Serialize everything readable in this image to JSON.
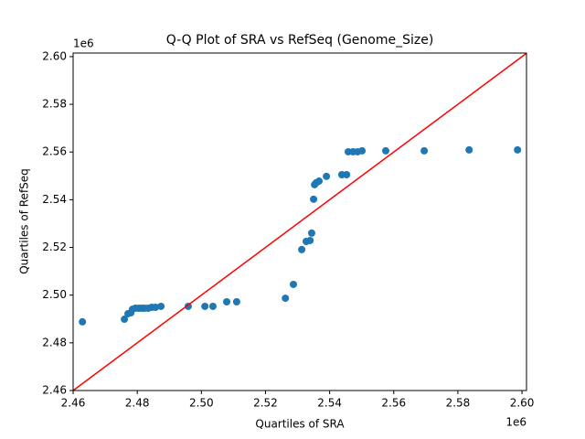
{
  "chart_data": {
    "type": "scatter",
    "title": "Q-Q Plot of SRA vs RefSeq (Genome_Size)",
    "x_label": "Quartiles of SRA",
    "y_label": "Quartiles of RefSeq",
    "x_offset_label": "1e6",
    "y_offset_label": "1e6",
    "color": "#1f77b4",
    "reference_line_color": "#ff0000",
    "xlim": [
      2.46,
      2.6014
    ],
    "ylim": [
      2.46,
      2.6015
    ],
    "xticks": [
      2.46,
      2.48,
      {
        "value": 2.5,
        "label": "2.50"
      },
      2.52,
      2.54,
      2.56,
      2.58,
      {
        "value": 2.6,
        "label": "2.60"
      }
    ],
    "yticks": [
      2.46,
      2.48,
      {
        "value": 2.5,
        "label": "2.50"
      },
      2.52,
      2.54,
      2.56,
      2.58,
      {
        "value": 2.6,
        "label": "2.60"
      }
    ],
    "x": [
      2.4629,
      2.476,
      2.4771,
      2.478,
      2.4785,
      2.4794,
      2.4805,
      2.4814,
      2.4822,
      2.4834,
      2.4845,
      2.4857,
      2.4874,
      2.4959,
      2.5011,
      2.5036,
      2.5079,
      2.511,
      2.5262,
      2.5287,
      2.5313,
      2.5327,
      2.5339,
      2.5344,
      2.535,
      2.5353,
      2.5358,
      2.5367,
      2.539,
      2.5438,
      2.5453,
      2.5458,
      2.5473,
      2.5487,
      2.5501,
      2.5575,
      2.5695,
      2.5835,
      2.5986
    ],
    "values": [
      2.4888,
      2.4899,
      2.4922,
      2.4926,
      2.4941,
      2.4945,
      2.4945,
      2.4945,
      2.4945,
      2.4945,
      2.4949,
      2.4949,
      2.4953,
      2.4953,
      2.4953,
      2.4953,
      2.4972,
      2.4972,
      2.4987,
      2.5045,
      2.5191,
      2.5225,
      2.5229,
      2.526,
      2.5402,
      2.5463,
      2.5471,
      2.5478,
      2.5498,
      2.5505,
      2.5505,
      2.5601,
      2.5601,
      2.5601,
      2.5605,
      2.5605,
      2.5605,
      2.5609,
      2.5609
    ]
  }
}
